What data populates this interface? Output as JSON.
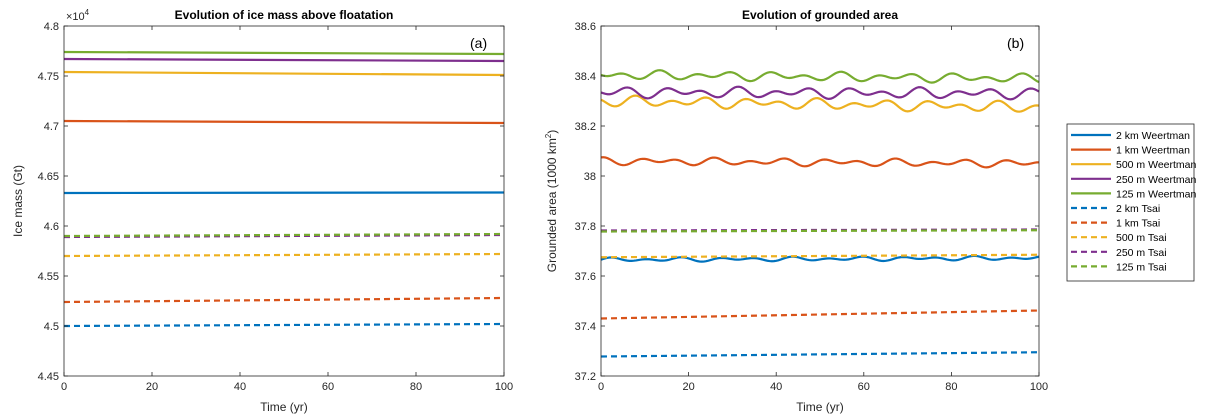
{
  "series_styles": [
    {
      "name": "2 km Weertman",
      "color": "#0072BD",
      "dash": false
    },
    {
      "name": "1 km Weertman",
      "color": "#D95319",
      "dash": false
    },
    {
      "name": "500 m Weertman",
      "color": "#EDB120",
      "dash": false
    },
    {
      "name": "250 m Weertman",
      "color": "#7E2F8E",
      "dash": false
    },
    {
      "name": "125 m Weertman",
      "color": "#77AC30",
      "dash": false
    },
    {
      "name": "2 km Tsai",
      "color": "#0072BD",
      "dash": true
    },
    {
      "name": "1 km Tsai",
      "color": "#D95319",
      "dash": true
    },
    {
      "name": "500 m Tsai",
      "color": "#EDB120",
      "dash": true
    },
    {
      "name": "250 m Tsai",
      "color": "#7E2F8E",
      "dash": true
    },
    {
      "name": "125 m Tsai",
      "color": "#77AC30",
      "dash": true
    }
  ],
  "chart_data": [
    {
      "type": "line",
      "panel_label": "(a)",
      "title": "Evolution of ice mass above floatation",
      "xlabel": "Time (yr)",
      "ylabel": "Ice mass (Gt)",
      "y_exponent_label": "×10",
      "y_exponent": "4",
      "xlim": [
        0,
        100
      ],
      "ylim": [
        4.45,
        4.8
      ],
      "xticks": [
        "0",
        "20",
        "40",
        "60",
        "80",
        "100"
      ],
      "yticks": [
        "4.45",
        "4.5",
        "4.55",
        "4.6",
        "4.65",
        "4.7",
        "4.75",
        "4.8"
      ],
      "x": [
        0,
        100
      ],
      "series": [
        {
          "name": "2 km Weertman",
          "values": [
            4.633,
            4.6335
          ]
        },
        {
          "name": "1 km Weertman",
          "values": [
            4.705,
            4.703
          ]
        },
        {
          "name": "500 m Weertman",
          "values": [
            4.754,
            4.751
          ]
        },
        {
          "name": "250 m Weertman",
          "values": [
            4.767,
            4.765
          ]
        },
        {
          "name": "125 m Weertman",
          "values": [
            4.774,
            4.772
          ]
        },
        {
          "name": "2 km Tsai",
          "values": [
            4.5,
            4.502
          ]
        },
        {
          "name": "1 km Tsai",
          "values": [
            4.524,
            4.528
          ]
        },
        {
          "name": "500 m Tsai",
          "values": [
            4.57,
            4.572
          ]
        },
        {
          "name": "250 m Tsai",
          "values": [
            4.589,
            4.591
          ]
        },
        {
          "name": "125 m Tsai",
          "values": [
            4.59,
            4.592
          ]
        }
      ]
    },
    {
      "type": "line",
      "panel_label": "(b)",
      "title": "Evolution of grounded area",
      "xlabel": "Time (yr)",
      "ylabel": "Grounded area (1000 km",
      "ylabel_sup": "2",
      "ylabel_end": ")",
      "xlim": [
        0,
        100
      ],
      "ylim": [
        37.2,
        38.6
      ],
      "xticks": [
        "0",
        "20",
        "40",
        "60",
        "80",
        "100"
      ],
      "yticks": [
        "37.2",
        "37.4",
        "37.6",
        "37.8",
        "38",
        "38.2",
        "38.4",
        "38.6"
      ],
      "x": [
        0,
        100
      ],
      "series": [
        {
          "name": "2 km Weertman",
          "mean": [
            37.665,
            37.672
          ],
          "wiggle": 0.008
        },
        {
          "name": "1 km Weertman",
          "mean": [
            38.06,
            38.05
          ],
          "wiggle": 0.014
        },
        {
          "name": "500 m Weertman",
          "mean": [
            38.3,
            38.275
          ],
          "wiggle": 0.02
        },
        {
          "name": "250 m Weertman",
          "mean": [
            38.335,
            38.33
          ],
          "wiggle": 0.02
        },
        {
          "name": "125 m Weertman",
          "mean": [
            38.405,
            38.39
          ],
          "wiggle": 0.017
        },
        {
          "name": "2 km Tsai",
          "values": [
            37.278,
            37.295
          ]
        },
        {
          "name": "1 km Tsai",
          "values": [
            37.43,
            37.462
          ]
        },
        {
          "name": "500 m Tsai",
          "values": [
            37.675,
            37.685
          ]
        },
        {
          "name": "250 m Tsai",
          "values": [
            37.782,
            37.786
          ]
        },
        {
          "name": "125 m Tsai",
          "values": [
            37.778,
            37.783
          ]
        }
      ]
    }
  ]
}
